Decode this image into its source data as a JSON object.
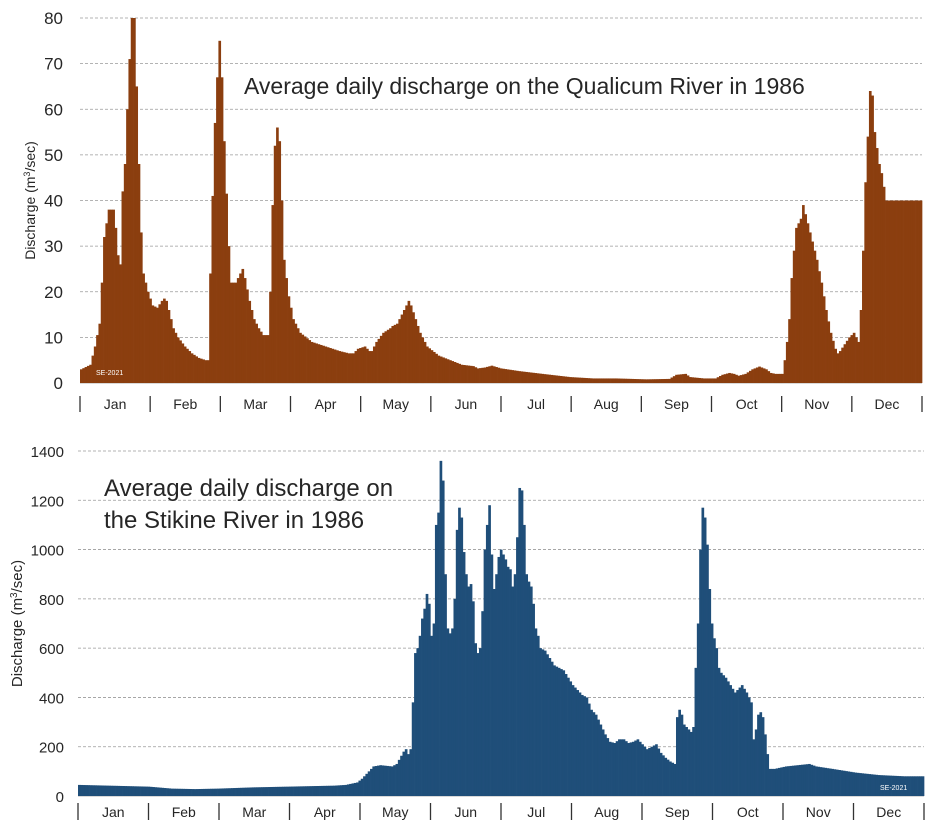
{
  "chart_data": [
    {
      "type": "bar",
      "title": "Average daily discharge on the Qualicum River in 1986",
      "ylabel": "Discharge (m³/sec)",
      "ylabel_main": "Discharge (m",
      "ylabel_sup": "3",
      "ylabel_tail": "/sec)",
      "ylim": [
        0,
        80
      ],
      "yticks": [
        "0",
        "10",
        "20",
        "30",
        "40",
        "50",
        "60",
        "70",
        "80"
      ],
      "grid": true,
      "months": [
        "Jan",
        "Feb",
        "Mar",
        "Apr",
        "May",
        "Jun",
        "Jul",
        "Aug",
        "Sep",
        "Oct",
        "Nov",
        "Dec"
      ],
      "watermark": "SE-2021",
      "color": "#8B3E0F",
      "series_shape": [
        [
          0,
          3
        ],
        [
          4,
          4
        ],
        [
          6,
          8
        ],
        [
          8,
          13
        ],
        [
          9,
          22
        ],
        [
          10,
          32
        ],
        [
          12,
          38
        ],
        [
          14,
          38
        ],
        [
          15,
          34
        ],
        [
          16,
          28
        ],
        [
          17,
          26
        ],
        [
          18,
          42
        ],
        [
          19,
          48
        ],
        [
          20,
          60
        ],
        [
          21,
          71
        ],
        [
          22,
          80
        ],
        [
          23,
          80
        ],
        [
          24,
          65
        ],
        [
          25,
          48
        ],
        [
          26,
          33
        ],
        [
          27,
          24
        ],
        [
          29,
          20
        ],
        [
          31,
          17
        ],
        [
          33,
          16.5
        ],
        [
          35,
          18
        ],
        [
          36,
          18.5
        ],
        [
          37,
          18
        ],
        [
          38,
          16
        ],
        [
          40,
          12
        ],
        [
          42,
          10
        ],
        [
          45,
          8
        ],
        [
          48,
          6.5
        ],
        [
          51,
          5.5
        ],
        [
          54,
          5
        ],
        [
          55,
          5
        ],
        [
          56,
          24
        ],
        [
          57,
          41
        ],
        [
          58,
          57
        ],
        [
          59,
          67
        ],
        [
          60,
          75
        ],
        [
          61,
          67
        ],
        [
          62,
          53
        ],
        [
          64,
          30
        ],
        [
          65,
          22
        ],
        [
          67,
          22
        ],
        [
          68,
          23
        ],
        [
          70,
          25
        ],
        [
          71,
          23
        ],
        [
          73,
          18
        ],
        [
          75,
          14
        ],
        [
          77,
          12
        ],
        [
          79,
          10.5
        ],
        [
          81,
          10.5
        ],
        [
          82,
          20
        ],
        [
          83,
          39
        ],
        [
          84,
          52
        ],
        [
          85,
          56
        ],
        [
          86,
          53
        ],
        [
          87,
          40
        ],
        [
          88,
          27
        ],
        [
          90,
          19
        ],
        [
          92,
          14
        ],
        [
          95,
          11
        ],
        [
          100,
          9
        ],
        [
          106,
          8
        ],
        [
          112,
          7
        ],
        [
          116,
          6.5
        ],
        [
          118,
          6.5
        ],
        [
          120,
          7.5
        ],
        [
          123,
          8
        ],
        [
          125,
          7
        ],
        [
          126,
          7
        ],
        [
          128,
          9
        ],
        [
          131,
          11
        ],
        [
          134,
          12
        ],
        [
          135,
          12.5
        ],
        [
          137,
          13
        ],
        [
          139,
          15
        ],
        [
          141,
          17
        ],
        [
          142,
          18
        ],
        [
          143,
          17
        ],
        [
          145,
          14
        ],
        [
          147,
          11
        ],
        [
          150,
          8
        ],
        [
          155,
          6
        ],
        [
          160,
          5
        ],
        [
          165,
          4
        ],
        [
          170,
          3.7
        ],
        [
          172,
          3.2
        ],
        [
          175,
          3.4
        ],
        [
          178,
          3.8
        ],
        [
          182,
          3.2
        ],
        [
          190,
          2.6
        ],
        [
          200,
          2
        ],
        [
          212,
          1.3
        ],
        [
          222,
          1
        ],
        [
          232,
          1
        ],
        [
          245,
          0.8
        ],
        [
          255,
          0.9
        ],
        [
          256,
          1.2
        ],
        [
          258,
          1.8
        ],
        [
          262,
          2
        ],
        [
          264,
          1.3
        ],
        [
          270,
          1
        ],
        [
          275,
          1
        ],
        [
          278,
          1.8
        ],
        [
          281,
          2.2
        ],
        [
          283,
          2
        ],
        [
          285,
          1.6
        ],
        [
          288,
          2
        ],
        [
          291,
          3
        ],
        [
          294,
          3.6
        ],
        [
          297,
          3
        ],
        [
          299,
          2.2
        ],
        [
          301,
          2
        ],
        [
          304,
          2
        ],
        [
          305,
          5
        ],
        [
          306,
          9
        ],
        [
          307,
          14
        ],
        [
          308,
          23
        ],
        [
          309,
          29
        ],
        [
          310,
          34
        ],
        [
          312,
          36
        ],
        [
          313,
          39
        ],
        [
          315,
          35
        ],
        [
          317,
          31
        ],
        [
          319,
          27
        ],
        [
          321,
          22
        ],
        [
          323,
          16
        ],
        [
          325,
          11
        ],
        [
          327,
          7.5
        ],
        [
          328,
          6.5
        ],
        [
          329,
          7
        ],
        [
          331,
          8.5
        ],
        [
          333,
          10
        ],
        [
          335,
          11
        ],
        [
          336,
          10
        ],
        [
          337,
          9
        ],
        [
          338,
          16
        ],
        [
          339,
          29
        ],
        [
          340,
          44
        ],
        [
          341,
          54
        ],
        [
          342,
          64
        ],
        [
          343,
          63
        ],
        [
          344,
          55
        ],
        [
          346,
          48
        ],
        [
          347,
          46
        ],
        [
          348,
          43
        ],
        [
          349,
          40
        ]
      ]
    },
    {
      "type": "bar",
      "title_line1": "Average daily discharge on",
      "title_line2": "the Stikine River in 1986",
      "ylabel": "Discharge (m³/sec)",
      "ylabel_main": "Discharge (m",
      "ylabel_sup": "3",
      "ylabel_tail": "/sec)",
      "ylim": [
        0,
        1400
      ],
      "yticks": [
        "0",
        "200",
        "400",
        "600",
        "800",
        "1000",
        "1200",
        "1400"
      ],
      "grid": true,
      "months": [
        "Jan",
        "Feb",
        "Mar",
        "Apr",
        "May",
        "Jun",
        "Jul",
        "Aug",
        "Sep",
        "Oct",
        "Nov",
        "Dec"
      ],
      "watermark": "SE-2021",
      "color": "#1F4E79",
      "series_shape": [
        [
          0,
          45
        ],
        [
          30,
          38
        ],
        [
          40,
          30
        ],
        [
          50,
          28
        ],
        [
          60,
          30
        ],
        [
          75,
          35
        ],
        [
          90,
          38
        ],
        [
          100,
          40
        ],
        [
          110,
          42
        ],
        [
          115,
          45
        ],
        [
          120,
          55
        ],
        [
          122,
          70
        ],
        [
          125,
          100
        ],
        [
          127,
          120
        ],
        [
          130,
          125
        ],
        [
          135,
          120
        ],
        [
          137,
          130
        ],
        [
          140,
          180
        ],
        [
          141,
          190
        ],
        [
          142,
          170
        ],
        [
          143,
          190
        ],
        [
          144,
          380
        ],
        [
          145,
          580
        ],
        [
          146,
          600
        ],
        [
          147,
          650
        ],
        [
          148,
          720
        ],
        [
          149,
          760
        ],
        [
          150,
          820
        ],
        [
          151,
          780
        ],
        [
          152,
          650
        ],
        [
          153,
          700
        ],
        [
          154,
          1100
        ],
        [
          155,
          1150
        ],
        [
          156,
          1360
        ],
        [
          157,
          1280
        ],
        [
          158,
          900
        ],
        [
          159,
          680
        ],
        [
          160,
          660
        ],
        [
          161,
          680
        ],
        [
          162,
          800
        ],
        [
          163,
          1080
        ],
        [
          164,
          1170
        ],
        [
          165,
          1130
        ],
        [
          166,
          990
        ],
        [
          167,
          900
        ],
        [
          168,
          850
        ],
        [
          169,
          860
        ],
        [
          170,
          790
        ],
        [
          171,
          620
        ],
        [
          172,
          580
        ],
        [
          173,
          600
        ],
        [
          174,
          750
        ],
        [
          175,
          1000
        ],
        [
          176,
          1100
        ],
        [
          177,
          1180
        ],
        [
          178,
          980
        ],
        [
          179,
          840
        ],
        [
          180,
          900
        ],
        [
          181,
          970
        ],
        [
          182,
          1000
        ],
        [
          183,
          980
        ],
        [
          184,
          960
        ],
        [
          185,
          930
        ],
        [
          186,
          920
        ],
        [
          187,
          850
        ],
        [
          188,
          900
        ],
        [
          189,
          1050
        ],
        [
          190,
          1250
        ],
        [
          191,
          1240
        ],
        [
          192,
          1100
        ],
        [
          193,
          900
        ],
        [
          194,
          870
        ],
        [
          195,
          850
        ],
        [
          196,
          780
        ],
        [
          197,
          680
        ],
        [
          198,
          650
        ],
        [
          199,
          600
        ],
        [
          201,
          590
        ],
        [
          203,
          560
        ],
        [
          205,
          530
        ],
        [
          207,
          520
        ],
        [
          209,
          510
        ],
        [
          211,
          480
        ],
        [
          213,
          450
        ],
        [
          215,
          430
        ],
        [
          217,
          410
        ],
        [
          219,
          400
        ],
        [
          221,
          350
        ],
        [
          223,
          330
        ],
        [
          225,
          290
        ],
        [
          227,
          250
        ],
        [
          229,
          220
        ],
        [
          231,
          215
        ],
        [
          233,
          230
        ],
        [
          235,
          230
        ],
        [
          237,
          215
        ],
        [
          239,
          220
        ],
        [
          241,
          230
        ],
        [
          243,
          210
        ],
        [
          245,
          190
        ],
        [
          247,
          200
        ],
        [
          249,
          210
        ],
        [
          251,
          175
        ],
        [
          253,
          155
        ],
        [
          255,
          140
        ],
        [
          257,
          130
        ],
        [
          258,
          320
        ],
        [
          259,
          350
        ],
        [
          260,
          330
        ],
        [
          261,
          290
        ],
        [
          262,
          280
        ],
        [
          263,
          270
        ],
        [
          264,
          260
        ],
        [
          265,
          280
        ],
        [
          266,
          520
        ],
        [
          267,
          700
        ],
        [
          268,
          1000
        ],
        [
          269,
          1170
        ],
        [
          270,
          1130
        ],
        [
          271,
          1020
        ],
        [
          272,
          840
        ],
        [
          273,
          700
        ],
        [
          274,
          640
        ],
        [
          275,
          600
        ],
        [
          276,
          520
        ],
        [
          277,
          500
        ],
        [
          279,
          480
        ],
        [
          281,
          450
        ],
        [
          283,
          420
        ],
        [
          285,
          440
        ],
        [
          286,
          450
        ],
        [
          288,
          420
        ],
        [
          290,
          380
        ],
        [
          291,
          230
        ],
        [
          292,
          270
        ],
        [
          293,
          330
        ],
        [
          294,
          340
        ],
        [
          295,
          320
        ],
        [
          296,
          250
        ],
        [
          297,
          170
        ],
        [
          298,
          110
        ],
        [
          300,
          110
        ],
        [
          305,
          120
        ],
        [
          310,
          125
        ],
        [
          315,
          130
        ],
        [
          318,
          120
        ],
        [
          325,
          110
        ],
        [
          335,
          95
        ],
        [
          345,
          85
        ],
        [
          356,
          80
        ]
      ]
    }
  ]
}
